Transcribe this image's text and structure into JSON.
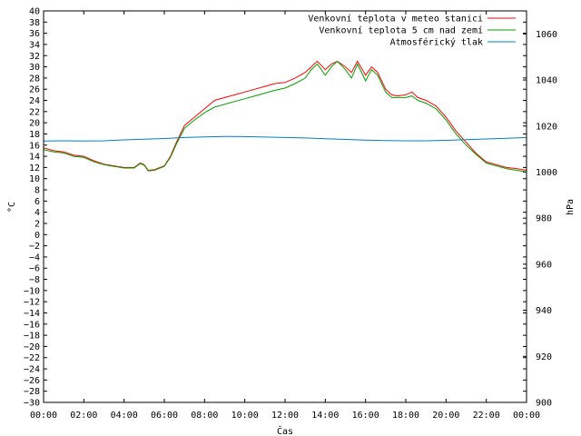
{
  "chart_data": {
    "type": "line",
    "xlabel": "Čas",
    "ylabel": "°C",
    "y2label": "hPa",
    "x_ticks": [
      "00:00",
      "02:00",
      "04:00",
      "06:00",
      "08:00",
      "10:00",
      "12:00",
      "14:00",
      "16:00",
      "18:00",
      "20:00",
      "22:00",
      "00:00"
    ],
    "xlim": [
      0,
      24
    ],
    "ylim": [
      -30,
      40
    ],
    "y2lim": [
      900,
      1070
    ],
    "y_ticks": [
      40,
      38,
      36,
      34,
      32,
      30,
      28,
      26,
      24,
      22,
      20,
      18,
      16,
      14,
      12,
      10,
      8,
      6,
      4,
      2,
      0,
      -2,
      -4,
      -6,
      -8,
      -10,
      -12,
      -14,
      -16,
      -18,
      -20,
      -22,
      -24,
      -26,
      -28,
      -30
    ],
    "y2_ticks": [
      1060,
      1040,
      1020,
      1000,
      980,
      960,
      940,
      920,
      900
    ],
    "grid": false,
    "legend_position": "top-right",
    "colors": {
      "temp_station": "#ff0000",
      "temp_ground": "#00a000",
      "pressure": "#0080c0",
      "axis": "#000000",
      "background": "#ffffff"
    },
    "series": [
      {
        "name": "Venkovní teplota v meteo stanici",
        "color": "#ff0000",
        "axis": "y",
        "x": [
          0,
          0.5,
          1,
          1.5,
          2,
          2.5,
          3,
          3.5,
          4,
          4.5,
          4.8,
          5,
          5.2,
          5.5,
          6,
          6.3,
          6.6,
          7,
          7.5,
          8,
          8.5,
          9,
          9.5,
          10,
          10.5,
          11,
          11.5,
          12,
          12.5,
          13,
          13.3,
          13.6,
          14,
          14.3,
          14.6,
          15,
          15.3,
          15.6,
          16,
          16.3,
          16.6,
          17,
          17.3,
          17.6,
          18,
          18.3,
          18.6,
          19,
          19.5,
          20,
          20.5,
          21,
          21.5,
          22,
          22.5,
          23,
          23.5,
          24
        ],
        "y": [
          15.5,
          15,
          14.8,
          14.2,
          14,
          13.2,
          12.6,
          12.3,
          12,
          12,
          12.8,
          12.5,
          11.5,
          11.6,
          12.3,
          14,
          16.5,
          19.5,
          21,
          22.5,
          24,
          24.5,
          25,
          25.5,
          26,
          26.5,
          27,
          27.2,
          28,
          29,
          30,
          31,
          29.5,
          30.5,
          31,
          30,
          29,
          31,
          28.5,
          30,
          29,
          26,
          25,
          24.8,
          25,
          25.5,
          24.5,
          24,
          23,
          21,
          18.5,
          16.5,
          14.5,
          13,
          12.5,
          12,
          11.8,
          11.5
        ]
      },
      {
        "name": "Venkovní teplota 5 cm nad zemí",
        "color": "#00a000",
        "axis": "y",
        "x": [
          0,
          0.5,
          1,
          1.5,
          2,
          2.5,
          3,
          3.5,
          4,
          4.5,
          4.8,
          5,
          5.2,
          5.5,
          6,
          6.3,
          6.6,
          7,
          7.5,
          8,
          8.5,
          9,
          9.5,
          10,
          10.5,
          11,
          11.5,
          12,
          12.5,
          13,
          13.3,
          13.6,
          14,
          14.3,
          14.6,
          15,
          15.3,
          15.6,
          16,
          16.3,
          16.6,
          17,
          17.3,
          17.6,
          18,
          18.3,
          18.6,
          19,
          19.5,
          20,
          20.5,
          21,
          21.5,
          22,
          22.5,
          23,
          23.5,
          24
        ],
        "y": [
          15.2,
          14.8,
          14.6,
          14,
          13.8,
          13,
          12.5,
          12.2,
          11.9,
          11.9,
          12.7,
          12.4,
          11.4,
          11.5,
          12.2,
          13.8,
          16.2,
          19,
          20.5,
          21.8,
          22.8,
          23.3,
          23.8,
          24.3,
          24.8,
          25.3,
          25.8,
          26.2,
          27,
          28,
          29.5,
          30.5,
          28.5,
          30,
          31,
          29.5,
          28,
          30.5,
          27.5,
          29.5,
          28.5,
          25.5,
          24.5,
          24.5,
          24.5,
          24.8,
          24,
          23.5,
          22.5,
          20.5,
          18,
          16,
          14.3,
          12.8,
          12.3,
          11.8,
          11.5,
          11.2
        ]
      },
      {
        "name": "Atmosférický tlak",
        "color": "#0080c0",
        "axis": "y2",
        "x": [
          0,
          1,
          2,
          3,
          4,
          5,
          6,
          7,
          8,
          9,
          10,
          11,
          12,
          13,
          14,
          15,
          16,
          17,
          18,
          19,
          20,
          21,
          22,
          23,
          24
        ],
        "y": [
          1013.5,
          1013.6,
          1013.5,
          1013.6,
          1014,
          1014.3,
          1014.6,
          1015,
          1015.3,
          1015.5,
          1015.4,
          1015.2,
          1015,
          1014.8,
          1014.5,
          1014.2,
          1013.9,
          1013.7,
          1013.6,
          1013.6,
          1013.8,
          1014.1,
          1014.4,
          1014.7,
          1015
        ]
      }
    ]
  }
}
